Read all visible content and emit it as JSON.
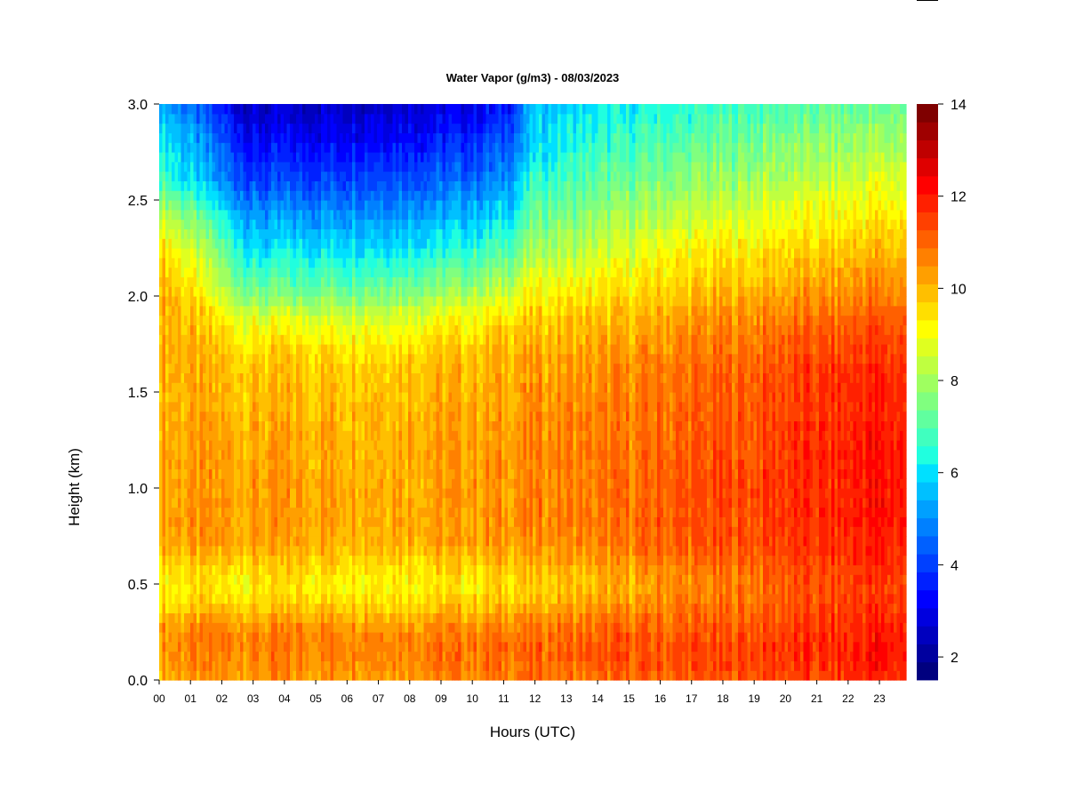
{
  "chart_data": {
    "type": "heatmap",
    "title": "Water Vapor (g/m3) - 08/03/2023",
    "xlabel": "Hours (UTC)",
    "ylabel": "Height (km)",
    "xlim": [
      0,
      23.85
    ],
    "ylim": [
      0,
      3.0
    ],
    "x_tick_labels": [
      "00",
      "01",
      "02",
      "03",
      "04",
      "05",
      "06",
      "07",
      "08",
      "09",
      "10",
      "11",
      "12",
      "13",
      "14",
      "15",
      "16",
      "17",
      "18",
      "19",
      "20",
      "21",
      "22",
      "23"
    ],
    "y_tick_labels": [
      "0.0",
      "0.5",
      "1.0",
      "1.5",
      "2.0",
      "2.5",
      "3.0"
    ],
    "y_tick_values": [
      0.0,
      0.5,
      1.0,
      1.5,
      2.0,
      2.5,
      3.0
    ],
    "colorbar": {
      "min": 1.5,
      "max": 14,
      "tick_values": [
        2,
        4,
        6,
        8,
        10,
        12,
        14
      ],
      "tick_labels": [
        "2",
        "4",
        "6",
        "8",
        "10",
        "12",
        "14"
      ],
      "colors": [
        "#00007f",
        "#00009f",
        "#0000bf",
        "#0000df",
        "#0000ff",
        "#0020ff",
        "#0040ff",
        "#0060ff",
        "#0080ff",
        "#00a0ff",
        "#00c0ff",
        "#00e0ff",
        "#20ffdf",
        "#40ffbf",
        "#60ff9f",
        "#80ff7f",
        "#9fff60",
        "#bfff40",
        "#dfff20",
        "#ffff00",
        "#ffdf00",
        "#ffbf00",
        "#ff9f00",
        "#ff8000",
        "#ff6000",
        "#ff4000",
        "#ff2000",
        "#ff0000",
        "#df0000",
        "#bf0000",
        "#9f0000",
        "#7f0000"
      ]
    },
    "profile_heights_km": [
      0.0,
      0.1,
      0.2,
      0.3,
      0.4,
      0.5,
      0.6,
      0.7,
      0.8,
      1.0,
      1.2,
      1.4,
      1.6,
      1.7,
      1.8,
      1.9,
      2.0,
      2.2,
      2.4,
      2.6,
      2.8,
      3.0
    ],
    "profile_hours": [
      0,
      3,
      6,
      9,
      10.5,
      11.2,
      12,
      14,
      15.5,
      16,
      18,
      18.8,
      20,
      22,
      22.4,
      23.85
    ],
    "water_vapor_g_m3": [
      [
        10.2,
        10.5,
        10.6,
        10.3,
        9.6,
        9.2,
        9.7,
        10.3,
        10.3,
        10.3,
        10.3,
        10.1,
        10.2,
        10.2,
        10.2,
        10.3,
        10.4,
        10.0,
        8.8,
        7.0,
        6.4,
        5.6
      ],
      [
        10.3,
        10.6,
        10.7,
        10.4,
        9.6,
        9.2,
        9.7,
        10.2,
        10.3,
        10.3,
        10.2,
        10.0,
        9.8,
        9.6,
        9.2,
        8.6,
        7.5,
        6.2,
        5.2,
        4.0,
        3.2,
        2.4
      ],
      [
        10.4,
        10.7,
        10.8,
        10.4,
        9.7,
        9.3,
        9.7,
        10.2,
        10.3,
        10.3,
        10.2,
        10.1,
        9.9,
        9.6,
        9.2,
        8.6,
        7.6,
        6.3,
        5.3,
        4.2,
        3.4,
        2.6
      ],
      [
        10.5,
        10.8,
        10.8,
        10.4,
        9.7,
        9.3,
        9.7,
        10.2,
        10.3,
        10.3,
        10.3,
        10.2,
        10.0,
        9.8,
        9.4,
        8.9,
        8.0,
        6.6,
        5.5,
        4.4,
        3.6,
        2.8
      ],
      [
        10.6,
        10.9,
        10.9,
        10.5,
        9.8,
        9.4,
        9.8,
        10.3,
        10.4,
        10.4,
        10.3,
        10.2,
        10.1,
        9.9,
        9.6,
        9.2,
        8.4,
        7.0,
        5.8,
        4.8,
        4.0,
        3.2
      ],
      [
        10.7,
        11.0,
        11.0,
        10.6,
        9.8,
        9.5,
        9.9,
        10.4,
        10.5,
        10.5,
        10.4,
        10.3,
        10.2,
        10.0,
        9.8,
        9.4,
        8.7,
        7.4,
        6.2,
        5.2,
        4.4,
        3.6
      ],
      [
        10.8,
        11.0,
        11.0,
        10.7,
        10.0,
        9.7,
        10.0,
        10.4,
        10.6,
        10.6,
        10.6,
        10.5,
        10.3,
        10.1,
        9.9,
        9.7,
        9.2,
        8.2,
        7.3,
        6.6,
        6.0,
        5.6
      ],
      [
        10.9,
        11.1,
        11.1,
        10.8,
        10.2,
        9.9,
        10.2,
        10.6,
        10.7,
        10.7,
        10.7,
        10.6,
        10.4,
        10.2,
        10.0,
        9.8,
        9.4,
        8.6,
        7.8,
        7.1,
        6.5,
        6.0
      ],
      [
        11.0,
        11.2,
        11.2,
        10.9,
        10.4,
        10.1,
        10.4,
        10.8,
        10.9,
        10.9,
        10.8,
        10.7,
        10.6,
        10.4,
        10.2,
        10.0,
        9.6,
        8.9,
        8.1,
        7.4,
        6.8,
        6.2
      ],
      [
        11.0,
        11.3,
        11.2,
        11.0,
        10.6,
        10.4,
        10.7,
        11.0,
        11.1,
        11.1,
        11.0,
        10.9,
        10.8,
        10.6,
        10.4,
        10.2,
        9.8,
        9.2,
        8.4,
        7.6,
        7.0,
        6.4
      ],
      [
        11.1,
        11.4,
        11.3,
        11.1,
        10.8,
        10.6,
        10.9,
        11.2,
        11.3,
        11.3,
        11.2,
        11.1,
        11.0,
        10.8,
        10.6,
        10.4,
        10.0,
        9.4,
        8.6,
        7.8,
        7.2,
        6.6
      ],
      [
        11.2,
        11.5,
        11.4,
        11.2,
        10.9,
        10.8,
        11.0,
        11.3,
        11.4,
        11.4,
        11.3,
        11.2,
        11.1,
        10.9,
        10.7,
        10.5,
        10.1,
        9.5,
        8.8,
        8.0,
        7.4,
        6.8
      ],
      [
        11.3,
        11.6,
        11.6,
        11.4,
        11.2,
        11.1,
        11.3,
        11.5,
        11.6,
        11.6,
        11.6,
        11.5,
        11.4,
        11.2,
        11.0,
        10.7,
        10.3,
        9.7,
        9.0,
        8.2,
        7.6,
        7.0
      ],
      [
        11.5,
        11.8,
        11.8,
        11.6,
        11.4,
        11.3,
        11.5,
        11.7,
        11.8,
        11.8,
        11.8,
        11.7,
        11.6,
        11.4,
        11.2,
        10.9,
        10.5,
        9.9,
        9.2,
        8.5,
        7.8,
        7.2
      ],
      [
        11.7,
        12.0,
        12.0,
        11.8,
        11.6,
        11.5,
        11.7,
        11.9,
        12.0,
        12.0,
        12.0,
        11.9,
        11.8,
        11.6,
        11.4,
        11.1,
        10.7,
        10.1,
        9.4,
        8.7,
        8.0,
        7.3
      ],
      [
        11.7,
        12.0,
        12.0,
        11.8,
        11.6,
        11.5,
        11.7,
        11.9,
        12.0,
        12.0,
        12.0,
        11.9,
        11.8,
        11.6,
        11.4,
        11.1,
        10.7,
        10.1,
        9.4,
        8.7,
        8.0,
        7.3
      ]
    ]
  }
}
